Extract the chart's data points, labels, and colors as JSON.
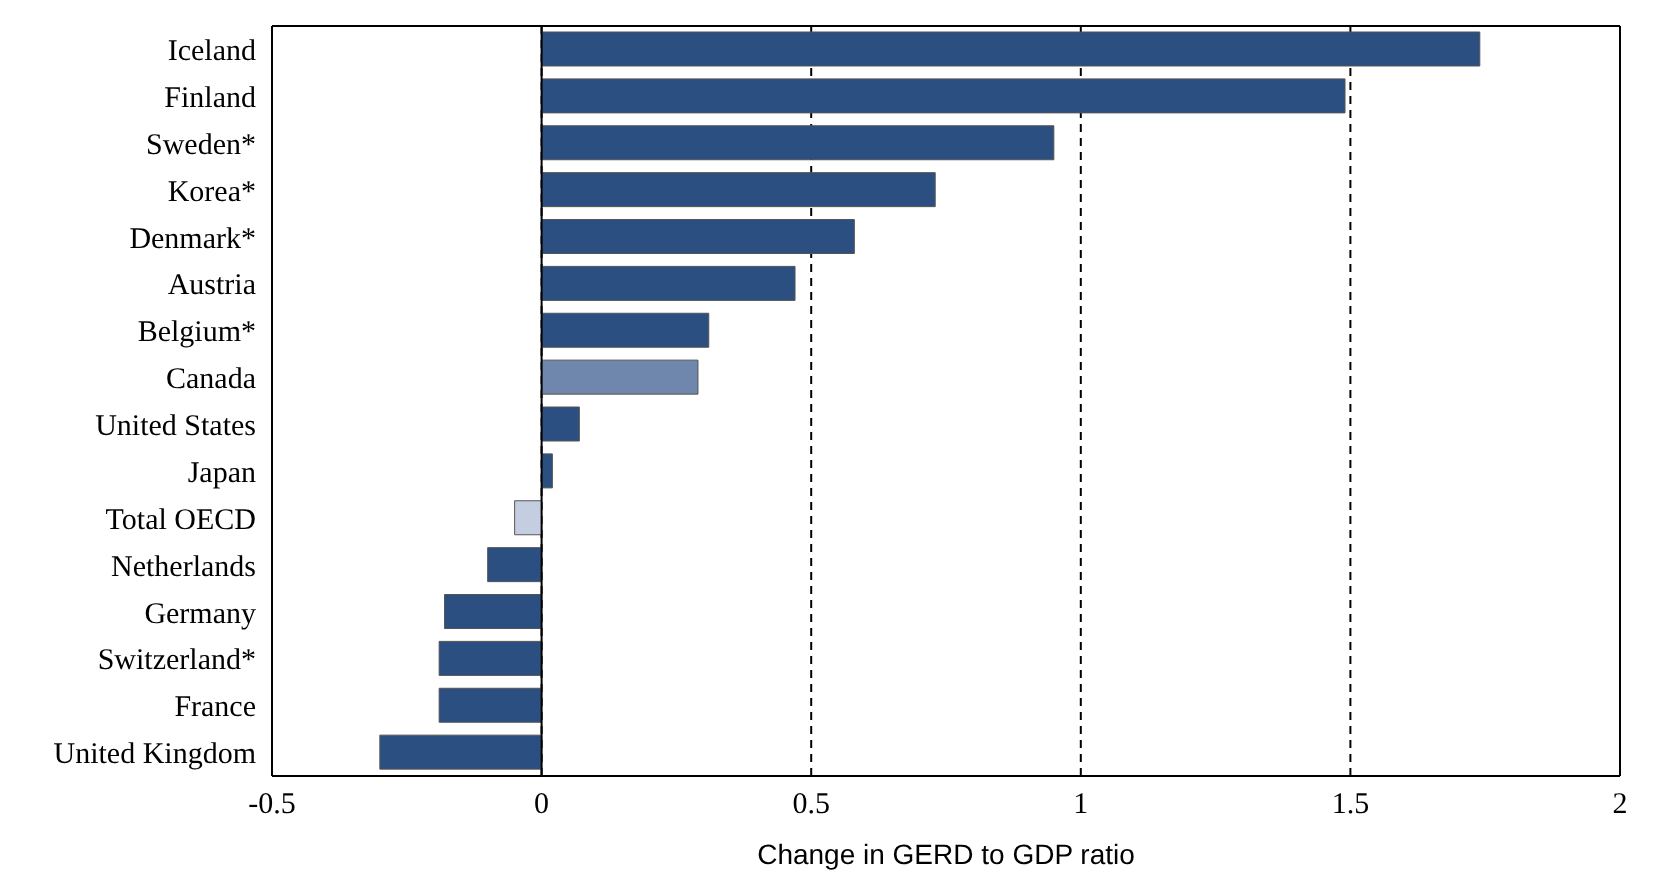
{
  "chart_data": {
    "type": "bar",
    "orientation": "horizontal",
    "xlabel": "Change in GERD to GDP ratio",
    "categories": [
      "Iceland",
      "Finland",
      "Sweden*",
      "Korea*",
      "Denmark*",
      "Austria",
      "Belgium*",
      "Canada",
      "United States",
      "Japan",
      "Total OECD",
      "Netherlands",
      "Germany",
      "Switzerland*",
      "France",
      "United Kingdom"
    ],
    "values": [
      1.74,
      1.49,
      0.95,
      0.73,
      0.58,
      0.47,
      0.31,
      0.29,
      0.07,
      0.02,
      -0.05,
      -0.1,
      -0.18,
      -0.19,
      -0.19,
      -0.3
    ],
    "colors": [
      "#2b4f81",
      "#2b4f81",
      "#2b4f81",
      "#2b4f81",
      "#2b4f81",
      "#2b4f81",
      "#2b4f81",
      "#6f86ad",
      "#2b4f81",
      "#2b4f81",
      "#c5cde0",
      "#2b4f81",
      "#2b4f81",
      "#2b4f81",
      "#2b4f81",
      "#2b4f81"
    ],
    "xlim": [
      -0.5,
      2
    ],
    "xticks": [
      -0.5,
      0,
      0.5,
      1,
      1.5,
      2
    ],
    "grid": "x"
  }
}
